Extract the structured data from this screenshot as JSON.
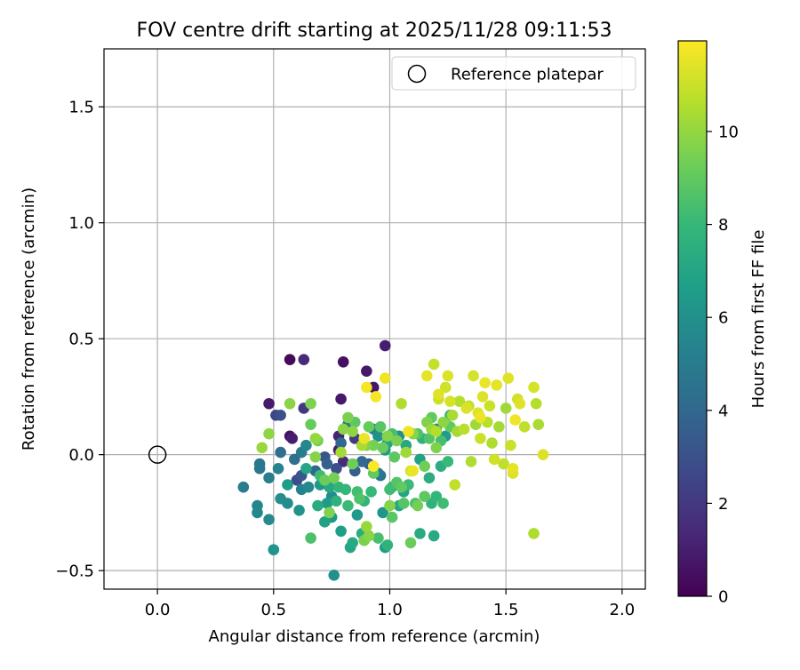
{
  "chart_data": {
    "type": "scatter",
    "title": "FOV centre drift starting at 2025/11/28 09:11:53",
    "xlabel": "Angular distance from reference (arcmin)",
    "ylabel": "Rotation from reference (arcmin)",
    "xlim": [
      -0.23,
      2.1
    ],
    "ylim": [
      -0.58,
      1.75
    ],
    "xticks": [
      0.0,
      0.5,
      1.0,
      1.5,
      2.0
    ],
    "xtick_labels": [
      "0.0",
      "0.5",
      "1.0",
      "1.5",
      "2.0"
    ],
    "yticks": [
      -0.5,
      0.0,
      0.5,
      1.0,
      1.5
    ],
    "ytick_labels": [
      "−0.5",
      "0.0",
      "0.5",
      "1.0",
      "1.5"
    ],
    "grid": true,
    "legend": {
      "position": "top-right",
      "entries": [
        {
          "label": "Reference platepar",
          "marker": "open-circle"
        }
      ]
    },
    "reference_point": {
      "x": 0.0,
      "y": 0.0
    },
    "colorbar": {
      "label": "Hours from first FF file",
      "min": 0,
      "max": 11.95,
      "ticks": [
        0,
        2,
        4,
        6,
        8,
        10
      ],
      "tick_labels": [
        "0",
        "2",
        "4",
        "6",
        "8",
        "10"
      ],
      "colormap": "viridis"
    },
    "colormap_stops": [
      "#440154",
      "#482878",
      "#3e4989",
      "#31688e",
      "#26828e",
      "#1f9e89",
      "#35b779",
      "#6ece58",
      "#b5de2b",
      "#fde725"
    ],
    "points": [
      {
        "x": 0.57,
        "y": 0.41,
        "h": 0.3
      },
      {
        "x": 0.63,
        "y": 0.41,
        "h": 1.4
      },
      {
        "x": 0.8,
        "y": 0.4,
        "h": 0.5
      },
      {
        "x": 0.9,
        "y": 0.36,
        "h": 0.8
      },
      {
        "x": 0.98,
        "y": 0.47,
        "h": 1.0
      },
      {
        "x": 0.79,
        "y": 0.24,
        "h": 0.8
      },
      {
        "x": 0.48,
        "y": 0.22,
        "h": 0.9
      },
      {
        "x": 0.51,
        "y": 0.17,
        "h": 2.5
      },
      {
        "x": 0.53,
        "y": 0.17,
        "h": 3.0
      },
      {
        "x": 0.57,
        "y": 0.08,
        "h": 0.6
      },
      {
        "x": 0.58,
        "y": 0.07,
        "h": 1.0
      },
      {
        "x": 0.63,
        "y": 0.2,
        "h": 2.0
      },
      {
        "x": 0.78,
        "y": 0.08,
        "h": 1.2
      },
      {
        "x": 0.93,
        "y": 0.29,
        "h": 0.7
      },
      {
        "x": 0.94,
        "y": 0.25,
        "h": 11.8
      },
      {
        "x": 0.78,
        "y": 0.02,
        "h": 0.9
      },
      {
        "x": 0.8,
        "y": -0.03,
        "h": 1.5
      },
      {
        "x": 0.85,
        "y": 0.07,
        "h": 2.1
      },
      {
        "x": 0.72,
        "y": -0.01,
        "h": 3.2
      },
      {
        "x": 0.62,
        "y": -0.09,
        "h": 3.3
      },
      {
        "x": 0.6,
        "y": -0.11,
        "h": 2.8
      },
      {
        "x": 0.68,
        "y": -0.07,
        "h": 4.0
      },
      {
        "x": 0.73,
        "y": -0.04,
        "h": 3.7
      },
      {
        "x": 0.77,
        "y": -0.06,
        "h": 2.9
      },
      {
        "x": 0.85,
        "y": -0.07,
        "h": 3.5
      },
      {
        "x": 0.88,
        "y": -0.03,
        "h": 4.1
      },
      {
        "x": 0.96,
        "y": -0.09,
        "h": 4.6
      },
      {
        "x": 0.53,
        "y": 0.01,
        "h": 4.3
      },
      {
        "x": 0.62,
        "y": 0.01,
        "h": 5.0
      },
      {
        "x": 0.64,
        "y": 0.04,
        "h": 5.5
      },
      {
        "x": 0.44,
        "y": -0.04,
        "h": 4.8
      },
      {
        "x": 0.44,
        "y": -0.06,
        "h": 4.7
      },
      {
        "x": 0.48,
        "y": -0.1,
        "h": 5.1
      },
      {
        "x": 0.52,
        "y": -0.06,
        "h": 5.3
      },
      {
        "x": 0.37,
        "y": -0.14,
        "h": 5.0
      },
      {
        "x": 0.43,
        "y": -0.22,
        "h": 5.4
      },
      {
        "x": 0.43,
        "y": -0.25,
        "h": 5.6
      },
      {
        "x": 0.48,
        "y": -0.28,
        "h": 5.7
      },
      {
        "x": 0.5,
        "y": -0.41,
        "h": 6.2
      },
      {
        "x": 0.53,
        "y": -0.19,
        "h": 5.9
      },
      {
        "x": 0.56,
        "y": -0.21,
        "h": 5.8
      },
      {
        "x": 0.61,
        "y": -0.24,
        "h": 6.1
      },
      {
        "x": 0.62,
        "y": -0.15,
        "h": 5.2
      },
      {
        "x": 0.65,
        "y": -0.14,
        "h": 5.6
      },
      {
        "x": 0.66,
        "y": -0.36,
        "h": 8.5
      },
      {
        "x": 0.69,
        "y": -0.22,
        "h": 7.3
      },
      {
        "x": 0.7,
        "y": -0.09,
        "h": 8.2
      },
      {
        "x": 0.72,
        "y": -0.29,
        "h": 6.8
      },
      {
        "x": 0.73,
        "y": -0.21,
        "h": 6.5
      },
      {
        "x": 0.74,
        "y": -0.14,
        "h": 7.1
      },
      {
        "x": 0.75,
        "y": -0.27,
        "h": 6.3
      },
      {
        "x": 0.76,
        "y": -0.52,
        "h": 6.0
      },
      {
        "x": 0.77,
        "y": -0.2,
        "h": 7.6
      },
      {
        "x": 0.78,
        "y": -0.14,
        "h": 7.8
      },
      {
        "x": 0.79,
        "y": -0.33,
        "h": 6.7
      },
      {
        "x": 0.81,
        "y": -0.15,
        "h": 7.9
      },
      {
        "x": 0.82,
        "y": -0.22,
        "h": 8.1
      },
      {
        "x": 0.83,
        "y": -0.4,
        "h": 7.0
      },
      {
        "x": 0.84,
        "y": -0.38,
        "h": 7.2
      },
      {
        "x": 0.86,
        "y": -0.16,
        "h": 8.3
      },
      {
        "x": 0.87,
        "y": -0.19,
        "h": 8.6
      },
      {
        "x": 0.88,
        "y": -0.34,
        "h": 7.4
      },
      {
        "x": 0.89,
        "y": -0.37,
        "h": 9.5
      },
      {
        "x": 0.9,
        "y": -0.31,
        "h": 10.1
      },
      {
        "x": 0.91,
        "y": -0.35,
        "h": 9.8
      },
      {
        "x": 0.92,
        "y": -0.16,
        "h": 8.0
      },
      {
        "x": 0.93,
        "y": -0.08,
        "h": 9.0
      },
      {
        "x": 0.95,
        "y": -0.36,
        "h": 8.4
      },
      {
        "x": 0.97,
        "y": -0.25,
        "h": 6.2
      },
      {
        "x": 0.98,
        "y": -0.4,
        "h": 6.6
      },
      {
        "x": 0.99,
        "y": -0.39,
        "h": 7.7
      },
      {
        "x": 1.0,
        "y": -0.22,
        "h": 9.7
      },
      {
        "x": 1.01,
        "y": -0.27,
        "h": 8.8
      },
      {
        "x": 1.01,
        "y": -0.14,
        "h": 7.5
      },
      {
        "x": 1.03,
        "y": -0.12,
        "h": 8.7
      },
      {
        "x": 1.04,
        "y": -0.22,
        "h": 7.1
      },
      {
        "x": 1.06,
        "y": -0.16,
        "h": 6.9
      },
      {
        "x": 1.08,
        "y": -0.13,
        "h": 8.1
      },
      {
        "x": 1.09,
        "y": -0.38,
        "h": 9.2
      },
      {
        "x": 1.11,
        "y": -0.21,
        "h": 8.5
      },
      {
        "x": 1.12,
        "y": -0.22,
        "h": 9.4
      },
      {
        "x": 1.13,
        "y": -0.34,
        "h": 7.3
      },
      {
        "x": 1.15,
        "y": -0.18,
        "h": 8.9
      },
      {
        "x": 1.18,
        "y": -0.21,
        "h": 7.7
      },
      {
        "x": 1.19,
        "y": -0.35,
        "h": 7.2
      },
      {
        "x": 1.2,
        "y": -0.18,
        "h": 7.9
      },
      {
        "x": 1.22,
        "y": -0.05,
        "h": 7.4
      },
      {
        "x": 1.23,
        "y": -0.21,
        "h": 8.2
      },
      {
        "x": 1.25,
        "y": -0.03,
        "h": 8.0
      },
      {
        "x": 0.57,
        "y": 0.22,
        "h": 9.8
      },
      {
        "x": 0.48,
        "y": 0.09,
        "h": 9.9
      },
      {
        "x": 0.45,
        "y": 0.03,
        "h": 10.1
      },
      {
        "x": 0.66,
        "y": 0.22,
        "h": 9.6
      },
      {
        "x": 0.66,
        "y": 0.13,
        "h": 9.1
      },
      {
        "x": 0.68,
        "y": 0.07,
        "h": 10.0
      },
      {
        "x": 0.69,
        "y": 0.06,
        "h": 9.4
      },
      {
        "x": 0.68,
        "y": -0.01,
        "h": 9.7
      },
      {
        "x": 0.72,
        "y": -0.11,
        "h": 9.2
      },
      {
        "x": 0.74,
        "y": -0.25,
        "h": 9.6
      },
      {
        "x": 0.76,
        "y": -0.1,
        "h": 9.4
      },
      {
        "x": 0.79,
        "y": 0.01,
        "h": 10.3
      },
      {
        "x": 0.8,
        "y": 0.11,
        "h": 9.8
      },
      {
        "x": 0.82,
        "y": 0.16,
        "h": 9.5
      },
      {
        "x": 0.84,
        "y": 0.1,
        "h": 9.9
      },
      {
        "x": 0.84,
        "y": -0.04,
        "h": 9.3
      },
      {
        "x": 0.85,
        "y": 0.14,
        "h": 8.9
      },
      {
        "x": 0.88,
        "y": 0.04,
        "h": 10.4
      },
      {
        "x": 0.9,
        "y": 0.04,
        "h": 9.6
      },
      {
        "x": 0.91,
        "y": 0.12,
        "h": 9.1
      },
      {
        "x": 0.93,
        "y": 0.04,
        "h": 9.4
      },
      {
        "x": 0.96,
        "y": 0.12,
        "h": 8.8
      },
      {
        "x": 0.97,
        "y": 0.03,
        "h": 9.2
      },
      {
        "x": 0.99,
        "y": 0.08,
        "h": 9.7
      },
      {
        "x": 1.02,
        "y": -0.01,
        "h": 8.9
      },
      {
        "x": 1.03,
        "y": 0.06,
        "h": 9.5
      },
      {
        "x": 1.05,
        "y": 0.22,
        "h": 10.5
      },
      {
        "x": 1.07,
        "y": 0.01,
        "h": 10.2
      },
      {
        "x": 1.09,
        "y": -0.07,
        "h": 11.2
      },
      {
        "x": 1.1,
        "y": 0.09,
        "h": 9.8
      },
      {
        "x": 1.12,
        "y": 0.09,
        "h": 8.6
      },
      {
        "x": 1.14,
        "y": 0.07,
        "h": 7.6
      },
      {
        "x": 1.16,
        "y": 0.14,
        "h": 9.6
      },
      {
        "x": 1.17,
        "y": 0.07,
        "h": 8.7
      },
      {
        "x": 1.18,
        "y": 0.16,
        "h": 9.0
      },
      {
        "x": 1.19,
        "y": 0.39,
        "h": 10.9
      },
      {
        "x": 1.2,
        "y": 0.1,
        "h": 10.6
      },
      {
        "x": 1.21,
        "y": 0.24,
        "h": 11.0
      },
      {
        "x": 1.22,
        "y": 0.06,
        "h": 8.4
      },
      {
        "x": 1.23,
        "y": 0.14,
        "h": 9.9
      },
      {
        "x": 1.24,
        "y": 0.29,
        "h": 11.1
      },
      {
        "x": 1.25,
        "y": 0.34,
        "h": 11.3
      },
      {
        "x": 1.26,
        "y": 0.17,
        "h": 7.8
      },
      {
        "x": 1.27,
        "y": 0.17,
        "h": 10.4
      },
      {
        "x": 1.28,
        "y": -0.13,
        "h": 10.8
      },
      {
        "x": 1.29,
        "y": 0.1,
        "h": 10.3
      },
      {
        "x": 1.3,
        "y": 0.23,
        "h": 10.6
      },
      {
        "x": 1.32,
        "y": 0.11,
        "h": 10.7
      },
      {
        "x": 1.34,
        "y": 0.21,
        "h": 10.9
      },
      {
        "x": 1.35,
        "y": -0.03,
        "h": 10.5
      },
      {
        "x": 1.36,
        "y": 0.34,
        "h": 11.2
      },
      {
        "x": 1.37,
        "y": 0.13,
        "h": 10.2
      },
      {
        "x": 1.38,
        "y": 0.18,
        "h": 11.4
      },
      {
        "x": 1.39,
        "y": 0.07,
        "h": 11.0
      },
      {
        "x": 1.4,
        "y": 0.25,
        "h": 11.3
      },
      {
        "x": 1.41,
        "y": 0.31,
        "h": 11.6
      },
      {
        "x": 1.42,
        "y": 0.14,
        "h": 10.7
      },
      {
        "x": 1.43,
        "y": 0.21,
        "h": 11.0
      },
      {
        "x": 1.44,
        "y": 0.05,
        "h": 10.5
      },
      {
        "x": 1.45,
        "y": -0.02,
        "h": 11.1
      },
      {
        "x": 1.46,
        "y": 0.3,
        "h": 11.5
      },
      {
        "x": 1.47,
        "y": 0.12,
        "h": 10.3
      },
      {
        "x": 1.49,
        "y": -0.04,
        "h": 10.8
      },
      {
        "x": 1.5,
        "y": 0.2,
        "h": 10.2
      },
      {
        "x": 1.51,
        "y": 0.33,
        "h": 11.4
      },
      {
        "x": 1.52,
        "y": 0.04,
        "h": 11.0
      },
      {
        "x": 1.53,
        "y": -0.08,
        "h": 11.3
      },
      {
        "x": 1.54,
        "y": 0.15,
        "h": 11.7
      },
      {
        "x": 1.55,
        "y": 0.24,
        "h": 11.1
      },
      {
        "x": 1.56,
        "y": 0.22,
        "h": 11.4
      },
      {
        "x": 1.58,
        "y": 0.12,
        "h": 10.8
      },
      {
        "x": 1.62,
        "y": 0.29,
        "h": 11.2
      },
      {
        "x": 1.63,
        "y": 0.22,
        "h": 10.6
      },
      {
        "x": 1.64,
        "y": 0.13,
        "h": 10.4
      },
      {
        "x": 1.66,
        "y": 0.0,
        "h": 11.3
      },
      {
        "x": 1.62,
        "y": -0.34,
        "h": 10.5
      },
      {
        "x": 1.53,
        "y": -0.06,
        "h": 11.5
      },
      {
        "x": 0.89,
        "y": 0.07,
        "h": 11.6
      },
      {
        "x": 0.9,
        "y": 0.29,
        "h": 11.8
      },
      {
        "x": 0.93,
        "y": -0.05,
        "h": 11.9
      },
      {
        "x": 0.98,
        "y": 0.33,
        "h": 11.7
      },
      {
        "x": 1.08,
        "y": 0.1,
        "h": 11.7
      },
      {
        "x": 1.1,
        "y": -0.07,
        "h": 11.6
      },
      {
        "x": 1.16,
        "y": 0.34,
        "h": 11.5
      },
      {
        "x": 1.21,
        "y": 0.26,
        "h": 11.4
      },
      {
        "x": 1.26,
        "y": 0.23,
        "h": 11.2
      },
      {
        "x": 1.33,
        "y": 0.2,
        "h": 11.3
      },
      {
        "x": 1.39,
        "y": 0.16,
        "h": 11.6
      },
      {
        "x": 1.18,
        "y": 0.11,
        "h": 10.1
      },
      {
        "x": 1.2,
        "y": 0.03,
        "h": 9.6
      },
      {
        "x": 1.26,
        "y": 0.12,
        "h": 9.0
      },
      {
        "x": 1.15,
        "y": -0.05,
        "h": 9.3
      },
      {
        "x": 1.05,
        "y": -0.14,
        "h": 9.0
      },
      {
        "x": 1.0,
        "y": -0.15,
        "h": 8.2
      },
      {
        "x": 0.95,
        "y": 0.08,
        "h": 6.0
      },
      {
        "x": 0.93,
        "y": 0.11,
        "h": 5.3
      },
      {
        "x": 0.82,
        "y": 0.13,
        "h": 4.5
      },
      {
        "x": 0.79,
        "y": 0.05,
        "h": 4.0
      },
      {
        "x": 0.59,
        "y": -0.02,
        "h": 4.4
      },
      {
        "x": 0.56,
        "y": -0.13,
        "h": 6.6
      },
      {
        "x": 0.64,
        "y": -0.06,
        "h": 7.0
      },
      {
        "x": 0.7,
        "y": -0.13,
        "h": 6.4
      },
      {
        "x": 0.75,
        "y": -0.18,
        "h": 5.8
      },
      {
        "x": 0.86,
        "y": -0.26,
        "h": 6.5
      },
      {
        "x": 0.89,
        "y": -0.2,
        "h": 7.8
      },
      {
        "x": 1.06,
        "y": -0.21,
        "h": 8.7
      },
      {
        "x": 1.13,
        "y": -0.02,
        "h": 6.8
      },
      {
        "x": 1.17,
        "y": -0.1,
        "h": 7.4
      },
      {
        "x": 1.24,
        "y": 0.08,
        "h": 6.6
      },
      {
        "x": 1.2,
        "y": 0.11,
        "h": 5.5
      },
      {
        "x": 1.07,
        "y": 0.04,
        "h": 7.1
      },
      {
        "x": 1.04,
        "y": 0.08,
        "h": 5.9
      },
      {
        "x": 0.98,
        "y": 0.02,
        "h": 6.4
      },
      {
        "x": 0.91,
        "y": -0.04,
        "h": 3.6
      },
      {
        "x": 0.95,
        "y": -0.08,
        "h": 4.9
      },
      {
        "x": 0.99,
        "y": 0.05,
        "h": 6.9
      },
      {
        "x": 1.01,
        "y": 0.09,
        "h": 8.4
      }
    ]
  }
}
